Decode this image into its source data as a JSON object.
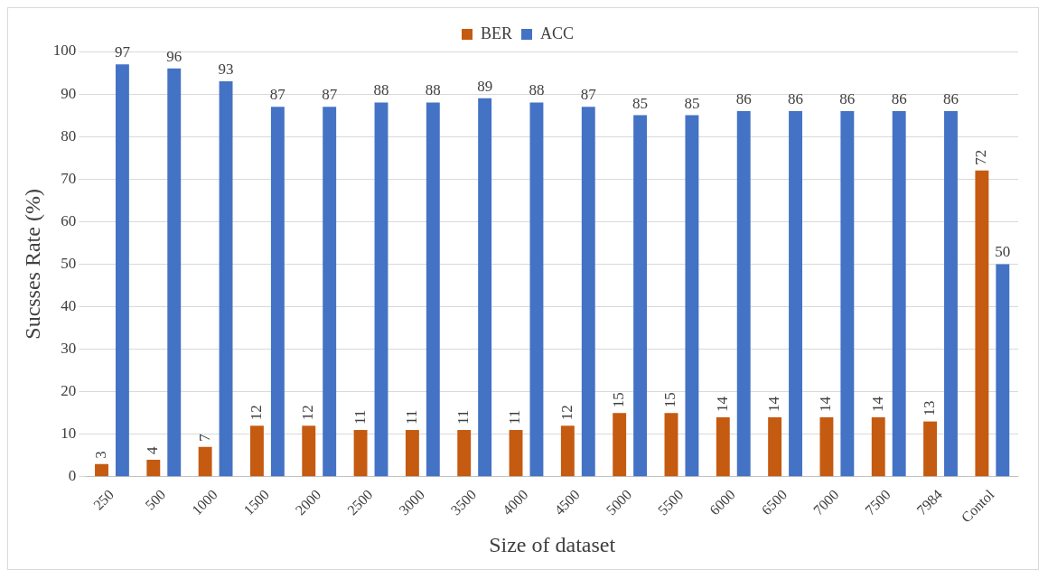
{
  "chart_data": {
    "type": "bar",
    "xlabel": "Size of dataset",
    "ylabel": "Sucsses Rate (%)",
    "categories": [
      "250",
      "500",
      "1000",
      "1500",
      "2000",
      "2500",
      "3000",
      "3500",
      "4000",
      "4500",
      "5000",
      "5500",
      "6000",
      "6500",
      "7000",
      "7500",
      "7984",
      "Contol"
    ],
    "series": [
      {
        "name": "BER",
        "color": "#c55a11",
        "values": [
          3,
          4,
          7,
          12,
          12,
          11,
          11,
          11,
          11,
          12,
          15,
          15,
          14,
          14,
          14,
          14,
          13,
          72
        ]
      },
      {
        "name": "ACC",
        "color": "#4472c4",
        "values": [
          97,
          96,
          93,
          87,
          87,
          88,
          88,
          89,
          88,
          87,
          85,
          85,
          86,
          86,
          86,
          86,
          86,
          50
        ]
      }
    ],
    "ylim": [
      0,
      100
    ],
    "yticks": [
      0,
      10,
      20,
      30,
      40,
      50,
      60,
      70,
      80,
      90,
      100
    ],
    "grid": "y",
    "legend": "top",
    "data_labels": true
  }
}
